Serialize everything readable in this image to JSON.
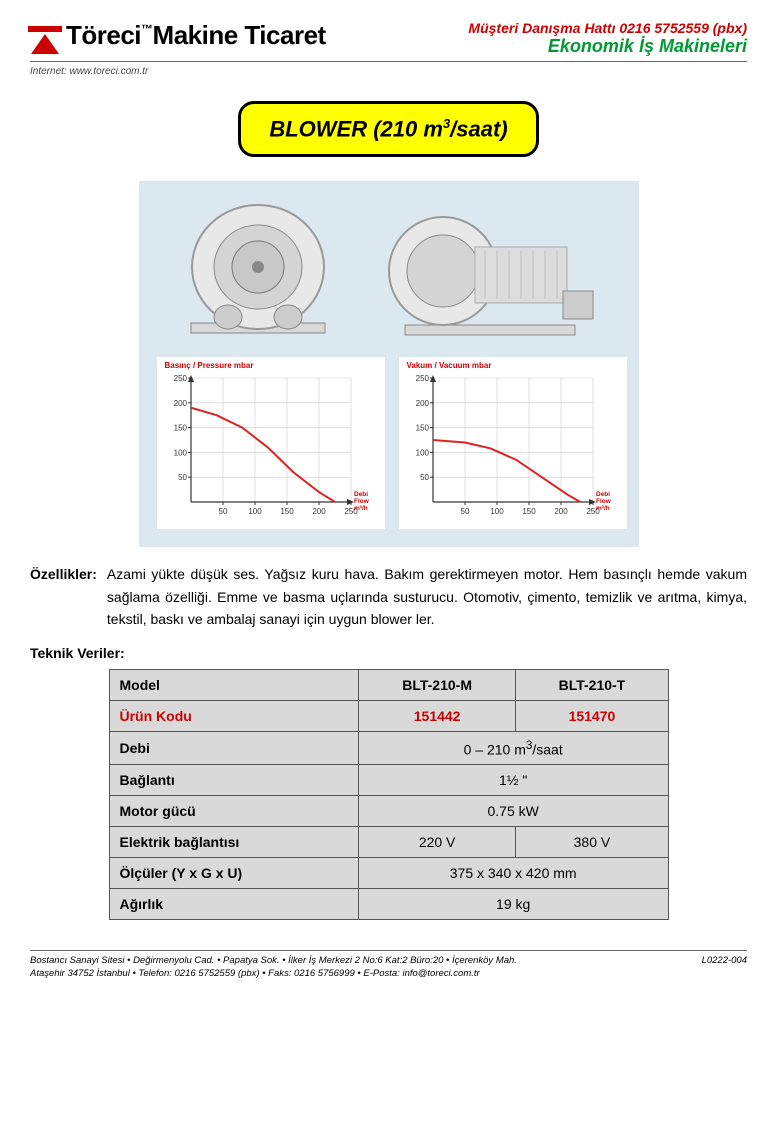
{
  "header": {
    "company_pre": "Töreci",
    "company_tm": "™",
    "company_post": "Makine Ticaret",
    "hotline": "Müşteri Danışma Hattı 0216 5752559 (pbx)",
    "tagline": "Ekonomik İş Makineleri",
    "internet": "Internet: www.toreci.com.tr",
    "logo_color": "#cc0000"
  },
  "title": {
    "pre": "BLOWER (210 m",
    "sup": "3",
    "post": "/saat)",
    "bg": "#ffff00",
    "border": "#000000"
  },
  "photo_area": {
    "bg": "#dce8ef"
  },
  "charts": {
    "pressure": {
      "title": "Basınç / Pressure mbar",
      "y_ticks": [
        50,
        100,
        150,
        200,
        250
      ],
      "x_ticks": [
        50,
        100,
        150,
        200,
        250
      ],
      "x_unit": "Debi Flow m³/h",
      "line_color": "#dd2222",
      "axis_color": "#333333",
      "data": [
        [
          0,
          190
        ],
        [
          40,
          175
        ],
        [
          80,
          150
        ],
        [
          120,
          110
        ],
        [
          160,
          60
        ],
        [
          200,
          20
        ],
        [
          225,
          0
        ]
      ]
    },
    "vacuum": {
      "title": "Vakum / Vacuum mbar",
      "y_ticks": [
        50,
        100,
        150,
        200,
        250
      ],
      "x_ticks": [
        50,
        100,
        150,
        200,
        250
      ],
      "x_unit": "Debi Flow m³/h",
      "line_color": "#dd2222",
      "axis_color": "#333333",
      "data": [
        [
          0,
          125
        ],
        [
          50,
          120
        ],
        [
          90,
          108
        ],
        [
          130,
          85
        ],
        [
          170,
          50
        ],
        [
          210,
          15
        ],
        [
          230,
          0
        ]
      ]
    }
  },
  "features": {
    "label": "Özellikler:",
    "text": "Azami yükte düşük ses. Yağsız kuru hava. Bakım gerektirmeyen motor. Hem basınçlı hemde vakum sağlama özelliği. Emme ve basma uçlarında susturucu. Otomotiv, çimento, temizlik ve arıtma, kimya, tekstil, baskı ve ambalaj sanayi için uygun blower ler."
  },
  "tech_label": "Teknik Veriler:",
  "table": {
    "rows": {
      "model_label": "Model",
      "model_a": "BLT-210-M",
      "model_b": "BLT-210-T",
      "code_label": "Ürün Kodu",
      "code_a": "151442",
      "code_b": "151470",
      "flow_label": "Debi",
      "flow_val_pre": "0 – 210 m",
      "flow_val_sup": "3",
      "flow_val_post": "/saat",
      "conn_label": "Bağlantı",
      "conn_val": "1½ \"",
      "power_label": "Motor gücü",
      "power_val": "0.75 kW",
      "elec_label": "Elektrik bağlantısı",
      "elec_a": "220 V",
      "elec_b": "380 V",
      "dim_label": "Ölçüler (Y x G x U)",
      "dim_val": "375 x 340 x 420 mm",
      "weight_label": "Ağırlık",
      "weight_val": "19 kg"
    },
    "cell_bg": "#d9d9d9",
    "border": "#555555",
    "code_color": "#cc0000"
  },
  "footer": {
    "line1": "Bostancı Sanayi Sitesi • Değirmenyolu Cad. • Papatya Sok. • İlker İş Merkezi 2 No:6 Kat:2 Büro:20 • İçerenköy Mah.",
    "line2": "Ataşehir 34752 İstanbul • Telefon: 0216 5752559 (pbx) • Faks: 0216 5756999 • E-Posta: info@toreci.com.tr",
    "docno": "L0222-004"
  }
}
